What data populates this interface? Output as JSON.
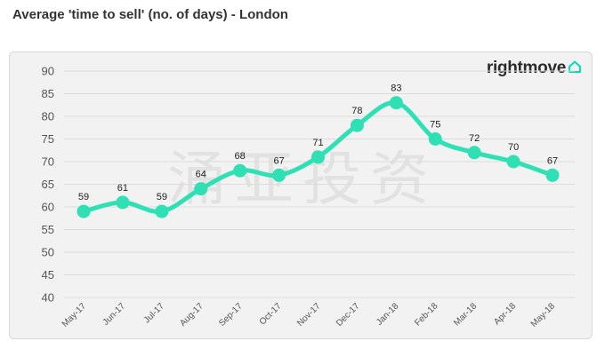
{
  "header": {
    "title": "Average 'time to sell' (no. of days) - London"
  },
  "brand": {
    "name": "rightmove",
    "icon": "house-icon",
    "color": "#00deb6"
  },
  "watermark": {
    "text": "涌亚投资"
  },
  "chart_data": {
    "type": "line",
    "title": "Average 'time to sell' (no. of days) - London",
    "xlabel": "",
    "ylabel": "",
    "ylim": [
      40,
      90
    ],
    "yticks": [
      40,
      45,
      50,
      55,
      60,
      65,
      70,
      75,
      80,
      85,
      90
    ],
    "grid": true,
    "legend": "none",
    "line_color": "#2ee0b4",
    "categories": [
      "May-17",
      "Jun-17",
      "Jul-17",
      "Aug-17",
      "Sep-17",
      "Oct-17",
      "Nov-17",
      "Dec-17",
      "Jan-18",
      "Feb-18",
      "Mar-18",
      "Apr-18",
      "May-18"
    ],
    "values": [
      59,
      61,
      59,
      64,
      68,
      67,
      71,
      78,
      83,
      75,
      72,
      70,
      67
    ]
  }
}
